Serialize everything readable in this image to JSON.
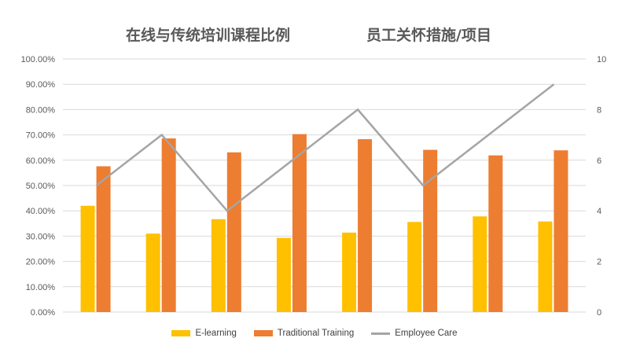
{
  "titles": {
    "left": "在线与传统培训课程比例",
    "right": "员工关怀措施/项目"
  },
  "chart_data": {
    "type": "bar",
    "categories": [
      "",
      "",
      "",
      "",
      "",
      "",
      "",
      ""
    ],
    "series": [
      {
        "name": "E-learning",
        "axis": "left",
        "kind": "bar",
        "color": "#FFC000",
        "values": [
          42.0,
          31.0,
          36.7,
          29.3,
          31.4,
          35.6,
          37.8,
          35.8
        ]
      },
      {
        "name": "Traditional Training",
        "axis": "left",
        "kind": "bar",
        "color": "#ED7D31",
        "values": [
          57.6,
          68.6,
          63.1,
          70.3,
          68.3,
          64.1,
          61.9,
          63.9
        ]
      },
      {
        "name": "Employee Care",
        "axis": "right",
        "kind": "line",
        "color": "#A5A5A5",
        "values": [
          5,
          7,
          4,
          6,
          8,
          5,
          7,
          9
        ]
      }
    ],
    "y_left": {
      "min": 0,
      "max": 100,
      "ticks": [
        "0.00%",
        "10.00%",
        "20.00%",
        "30.00%",
        "40.00%",
        "50.00%",
        "60.00%",
        "70.00%",
        "80.00%",
        "90.00%",
        "100.00%"
      ]
    },
    "y_right": {
      "min": 0,
      "max": 10,
      "ticks": [
        "0",
        "2",
        "4",
        "6",
        "8",
        "10"
      ]
    },
    "grid": true,
    "legend_position": "bottom"
  },
  "legend": [
    {
      "label": "E-learning",
      "color": "#FFC000",
      "type": "bar"
    },
    {
      "label": "Traditional Training",
      "color": "#ED7D31",
      "type": "bar"
    },
    {
      "label": "Employee Care",
      "color": "#A5A5A5",
      "type": "line"
    }
  ]
}
